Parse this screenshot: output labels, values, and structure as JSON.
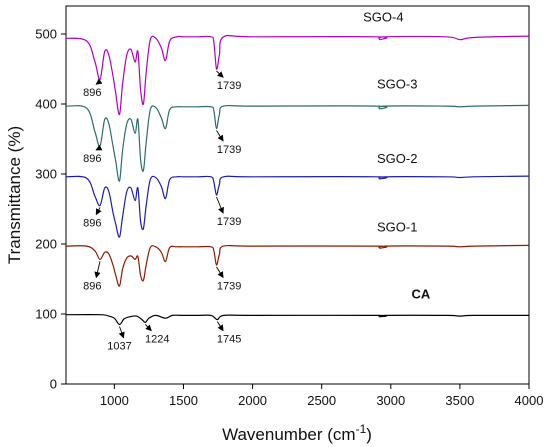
{
  "chart_data": {
    "type": "line",
    "xlabel": "Wavenumber (cm",
    "xlabel_sup": "-1",
    "xlabel_close": ")",
    "ylabel": "Transmittance (%)",
    "xlim": [
      650,
      4000
    ],
    "ylim": [
      0,
      540
    ],
    "xticks": [
      1000,
      1500,
      2000,
      2500,
      3000,
      3500,
      4000
    ],
    "xtick_labels": [
      "1000",
      "1500",
      "2000",
      "2500",
      "3000",
      "3500",
      "4000"
    ],
    "yticks": [
      0,
      100,
      200,
      300,
      400,
      500
    ],
    "ytick_labels": [
      "0",
      "100",
      "200",
      "300",
      "400",
      "500"
    ],
    "grid": false,
    "series": [
      {
        "name": "CA",
        "color": "#000000",
        "label_pos": [
          3150,
          122
        ],
        "bold": true,
        "x": [
          650,
          900,
          960,
          1000,
          1037,
          1070,
          1110,
          1160,
          1200,
          1224,
          1250,
          1300,
          1370,
          1420,
          1500,
          1600,
          1700,
          1745,
          1790,
          2000,
          2900,
          2920,
          2960,
          3400,
          3500,
          3600,
          4000
        ],
        "y": [
          99,
          99,
          97,
          94,
          85,
          93,
          96,
          97,
          92,
          88,
          94,
          98,
          94,
          98,
          98,
          98,
          98,
          92,
          98,
          98,
          98,
          96,
          98,
          98,
          97,
          98,
          98
        ],
        "annotations": [
          {
            "label": "1037",
            "x": 1037,
            "y": 85,
            "tx": 1037,
            "ty": 52
          },
          {
            "label": "1224",
            "x": 1224,
            "y": 88,
            "tx": 1310,
            "ty": 62
          },
          {
            "label": "1745",
            "x": 1745,
            "y": 92,
            "tx": 1830,
            "ty": 62
          }
        ]
      },
      {
        "name": "SGO-1",
        "color": "#8B1A00",
        "label_pos": [
          2900,
          218
        ],
        "x": [
          650,
          800,
          860,
          896,
          930,
          960,
          990,
          1010,
          1037,
          1060,
          1090,
          1120,
          1150,
          1170,
          1190,
          1210,
          1230,
          1260,
          1300,
          1340,
          1370,
          1400,
          1450,
          1500,
          1600,
          1700,
          1720,
          1739,
          1760,
          1790,
          2000,
          2900,
          2920,
          2960,
          3400,
          3500,
          3600,
          4000
        ],
        "y": [
          197,
          197,
          190,
          178,
          188,
          186,
          170,
          155,
          140,
          165,
          180,
          183,
          178,
          182,
          155,
          148,
          170,
          195,
          196,
          188,
          175,
          195,
          196,
          196,
          196,
          196,
          190,
          170,
          185,
          197,
          197,
          197,
          194,
          197,
          197,
          196,
          197,
          198
        ],
        "annotations": [
          {
            "label": "896",
            "x": 896,
            "y": 178,
            "tx": 840,
            "ty": 138
          },
          {
            "label": "1739",
            "x": 1739,
            "y": 170,
            "tx": 1830,
            "ty": 138
          }
        ]
      },
      {
        "name": "SGO-2",
        "color": "#1C1CB0",
        "label_pos": [
          2900,
          316
        ],
        "x": [
          650,
          800,
          860,
          896,
          930,
          960,
          990,
          1010,
          1037,
          1060,
          1090,
          1120,
          1150,
          1170,
          1190,
          1210,
          1230,
          1260,
          1300,
          1340,
          1370,
          1400,
          1450,
          1500,
          1600,
          1700,
          1720,
          1739,
          1760,
          1790,
          2000,
          2900,
          2920,
          2960,
          3400,
          3500,
          3600,
          4000
        ],
        "y": [
          296,
          294,
          268,
          255,
          280,
          275,
          245,
          228,
          210,
          240,
          275,
          280,
          262,
          280,
          232,
          222,
          255,
          292,
          295,
          282,
          265,
          292,
          296,
          296,
          296,
          296,
          288,
          270,
          285,
          296,
          296,
          296,
          293,
          296,
          296,
          295,
          296,
          297
        ],
        "annotations": [
          {
            "label": "896",
            "x": 896,
            "y": 255,
            "tx": 840,
            "ty": 228
          },
          {
            "label": "1739",
            "x": 1739,
            "y": 270,
            "tx": 1830,
            "ty": 230
          }
        ]
      },
      {
        "name": "SGO-3",
        "color": "#2E6B6B",
        "label_pos": [
          2900,
          422
        ],
        "x": [
          650,
          800,
          860,
          896,
          930,
          960,
          990,
          1010,
          1037,
          1060,
          1090,
          1120,
          1150,
          1170,
          1190,
          1210,
          1230,
          1260,
          1300,
          1340,
          1370,
          1400,
          1450,
          1500,
          1600,
          1700,
          1720,
          1739,
          1760,
          1790,
          2000,
          2900,
          2920,
          2960,
          3400,
          3500,
          3600,
          4000
        ],
        "y": [
          397,
          394,
          360,
          340,
          378,
          372,
          340,
          318,
          290,
          335,
          372,
          378,
          358,
          378,
          320,
          305,
          345,
          392,
          395,
          380,
          365,
          392,
          396,
          396,
          396,
          396,
          390,
          365,
          385,
          397,
          397,
          397,
          393,
          397,
          397,
          396,
          397,
          398
        ],
        "annotations": [
          {
            "label": "896",
            "x": 896,
            "y": 340,
            "tx": 840,
            "ty": 320
          },
          {
            "label": "1739",
            "x": 1739,
            "y": 365,
            "tx": 1830,
            "ty": 333
          }
        ]
      },
      {
        "name": "SGO-4",
        "color": "#B000C0",
        "label_pos": [
          2800,
          518
        ],
        "x": [
          650,
          800,
          860,
          896,
          930,
          960,
          990,
          1010,
          1037,
          1060,
          1090,
          1120,
          1150,
          1170,
          1190,
          1210,
          1230,
          1260,
          1300,
          1340,
          1370,
          1400,
          1450,
          1500,
          1600,
          1700,
          1720,
          1739,
          1760,
          1790,
          2000,
          2900,
          2920,
          2960,
          3400,
          3500,
          3600,
          4000
        ],
        "y": [
          494,
          490,
          460,
          435,
          475,
          470,
          440,
          415,
          385,
          430,
          470,
          478,
          460,
          475,
          420,
          400,
          445,
          492,
          494,
          480,
          462,
          490,
          496,
          496,
          496,
          496,
          488,
          450,
          470,
          496,
          496,
          496,
          492,
          496,
          496,
          492,
          495,
          497
        ],
        "annotations": [
          {
            "label": "896",
            "x": 896,
            "y": 435,
            "tx": 840,
            "ty": 414
          },
          {
            "label": "1739",
            "x": 1739,
            "y": 450,
            "tx": 1830,
            "ty": 424
          }
        ]
      }
    ]
  }
}
